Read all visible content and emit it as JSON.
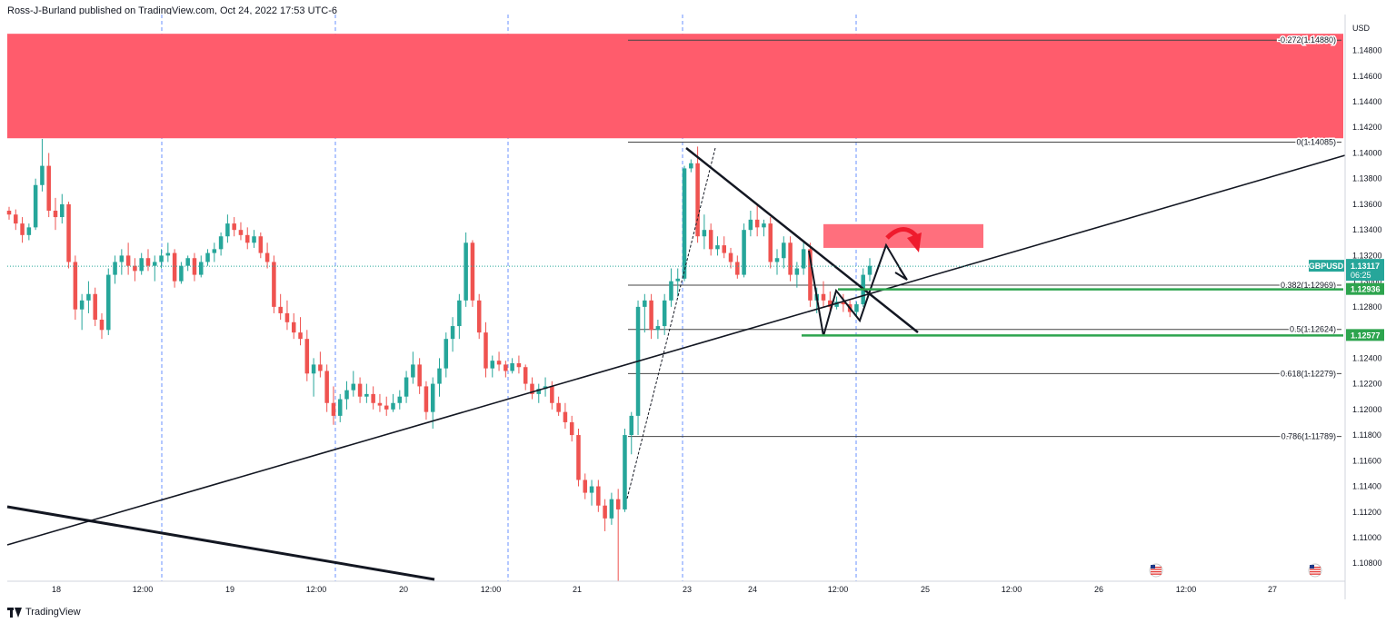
{
  "header": {
    "published_by": "Ross-J-Burland published on TradingView.com, Oct 24, 2022 17:53 UTC-6"
  },
  "footer": {
    "brand": "TradingView"
  },
  "chart_data": {
    "type": "candlestick",
    "symbol": "GBPUSD",
    "currency_label": "USD",
    "price_axis_ticks": [
      "1.14800",
      "1.14600",
      "1.14400",
      "1.14200",
      "1.14000",
      "1.13800",
      "1.13600",
      "1.13400",
      "1.13200",
      "1.13000",
      "1.12800",
      "1.12600",
      "1.12400",
      "1.12200",
      "1.12000",
      "1.11800",
      "1.11600",
      "1.11400",
      "1.11200",
      "1.11000",
      "1.10800"
    ],
    "time_axis_ticks": [
      "18",
      "12:00",
      "19",
      "12:00",
      "20",
      "12:00",
      "21",
      "23",
      "24",
      "12:00",
      "25",
      "12:00",
      "26",
      "12:00",
      "27"
    ],
    "ylim": [
      1.1066,
      1.1508
    ],
    "current_price": {
      "value": "1.13117",
      "countdown": "06:25",
      "label": "GBPUSD"
    },
    "horizontal_levels": [
      {
        "value": "1.12936",
        "color": "#2da44e"
      },
      {
        "value": "1.12577",
        "color": "#2da44e"
      }
    ],
    "fibonacci_levels": [
      {
        "label": "-0.272(1.14880)",
        "price": 1.1488
      },
      {
        "label": "0(1.14085)",
        "price": 1.14085
      },
      {
        "label": "0.382(1.12969)",
        "price": 1.12969
      },
      {
        "label": "0.5(1.12624)",
        "price": 1.12624
      },
      {
        "label": "0.618(1.12279)",
        "price": 1.12279
      },
      {
        "label": "0.786(1.11789)",
        "price": 1.11789
      }
    ],
    "zones": [
      {
        "name": "resistance-zone",
        "price_top": 1.1493,
        "price_bottom": 1.14115,
        "color": "#ff5c6c"
      },
      {
        "name": "target-zone",
        "price_top": 1.13445,
        "price_bottom": 1.1326,
        "color": "#ff6f7d"
      }
    ],
    "event_markers": [
      "us-flag-icon",
      "us-flag-icon"
    ],
    "colors": {
      "up": "#26a69a",
      "down": "#ef5350",
      "grid_day": "#2962ff",
      "level": "#2da44e",
      "axis_text": "#131722"
    },
    "candles": [
      [
        1.1355,
        1.1358,
        1.1348,
        1.1352
      ],
      [
        1.1352,
        1.1356,
        1.134,
        1.1345
      ],
      [
        1.1345,
        1.135,
        1.133,
        1.1336
      ],
      [
        1.1336,
        1.1345,
        1.1332,
        1.1342
      ],
      [
        1.1342,
        1.138,
        1.134,
        1.1375
      ],
      [
        1.1375,
        1.1411,
        1.137,
        1.139
      ],
      [
        1.139,
        1.14,
        1.135,
        1.1355
      ],
      [
        1.1355,
        1.1365,
        1.134,
        1.135
      ],
      [
        1.135,
        1.1368,
        1.1345,
        1.136
      ],
      [
        1.136,
        1.1362,
        1.131,
        1.1315
      ],
      [
        1.1315,
        1.132,
        1.127,
        1.1278
      ],
      [
        1.1278,
        1.129,
        1.1262,
        1.1285
      ],
      [
        1.1285,
        1.13,
        1.1275,
        1.129
      ],
      [
        1.129,
        1.1295,
        1.1265,
        1.127
      ],
      [
        1.127,
        1.1275,
        1.1255,
        1.1262
      ],
      [
        1.1262,
        1.131,
        1.1258,
        1.1305
      ],
      [
        1.1305,
        1.132,
        1.1298,
        1.1315
      ],
      [
        1.1315,
        1.1325,
        1.1305,
        1.132
      ],
      [
        1.132,
        1.133,
        1.1305,
        1.1312
      ],
      [
        1.1312,
        1.1318,
        1.13,
        1.1308
      ],
      [
        1.1308,
        1.1322,
        1.1305,
        1.1318
      ],
      [
        1.1318,
        1.1325,
        1.1308,
        1.1312
      ],
      [
        1.1312,
        1.132,
        1.13,
        1.1315
      ],
      [
        1.1315,
        1.1325,
        1.131,
        1.132
      ],
      [
        1.132,
        1.133,
        1.1315,
        1.1322
      ],
      [
        1.1322,
        1.1325,
        1.1295,
        1.13
      ],
      [
        1.13,
        1.1315,
        1.1298,
        1.1312
      ],
      [
        1.1312,
        1.132,
        1.1308,
        1.1318
      ],
      [
        1.1318,
        1.1322,
        1.13,
        1.1305
      ],
      [
        1.1305,
        1.132,
        1.1303,
        1.1315
      ],
      [
        1.1315,
        1.1325,
        1.1312,
        1.1322
      ],
      [
        1.1322,
        1.133,
        1.1315,
        1.1325
      ],
      [
        1.1325,
        1.1338,
        1.132,
        1.1335
      ],
      [
        1.1335,
        1.1352,
        1.133,
        1.1345
      ],
      [
        1.1345,
        1.135,
        1.1335,
        1.134
      ],
      [
        1.134,
        1.1346,
        1.1332,
        1.1336
      ],
      [
        1.1336,
        1.1342,
        1.1325,
        1.133
      ],
      [
        1.133,
        1.134,
        1.1326,
        1.1335
      ],
      [
        1.1335,
        1.1338,
        1.1318,
        1.1322
      ],
      [
        1.1322,
        1.133,
        1.131,
        1.1315
      ],
      [
        1.1315,
        1.132,
        1.1275,
        1.128
      ],
      [
        1.128,
        1.129,
        1.127,
        1.1275
      ],
      [
        1.1275,
        1.1285,
        1.1262,
        1.1268
      ],
      [
        1.1268,
        1.1275,
        1.1255,
        1.126
      ],
      [
        1.126,
        1.1272,
        1.125,
        1.1255
      ],
      [
        1.1255,
        1.1262,
        1.1222,
        1.1228
      ],
      [
        1.1228,
        1.124,
        1.121,
        1.1235
      ],
      [
        1.1235,
        1.1245,
        1.1225,
        1.123
      ],
      [
        1.123,
        1.1235,
        1.1198,
        1.1205
      ],
      [
        1.1205,
        1.1218,
        1.1188,
        1.1195
      ],
      [
        1.1195,
        1.1212,
        1.119,
        1.1208
      ],
      [
        1.1208,
        1.1222,
        1.12,
        1.1215
      ],
      [
        1.1215,
        1.123,
        1.121,
        1.122
      ],
      [
        1.122,
        1.1225,
        1.1205,
        1.121
      ],
      [
        1.121,
        1.122,
        1.1205,
        1.1212
      ],
      [
        1.1212,
        1.1218,
        1.12,
        1.1205
      ],
      [
        1.1205,
        1.1212,
        1.1198,
        1.1203
      ],
      [
        1.1203,
        1.121,
        1.1195,
        1.12
      ],
      [
        1.12,
        1.1212,
        1.1198,
        1.1205
      ],
      [
        1.1205,
        1.1215,
        1.12,
        1.121
      ],
      [
        1.121,
        1.123,
        1.1205,
        1.1225
      ],
      [
        1.1225,
        1.1245,
        1.122,
        1.1235
      ],
      [
        1.1235,
        1.124,
        1.1212,
        1.1218
      ],
      [
        1.1218,
        1.1222,
        1.1192,
        1.1198
      ],
      [
        1.1198,
        1.1225,
        1.1185,
        1.122
      ],
      [
        1.122,
        1.124,
        1.121,
        1.1232
      ],
      [
        1.1232,
        1.126,
        1.1225,
        1.1255
      ],
      [
        1.1255,
        1.1272,
        1.1245,
        1.1265
      ],
      [
        1.1265,
        1.129,
        1.1255,
        1.1285
      ],
      [
        1.1285,
        1.1338,
        1.128,
        1.133
      ],
      [
        1.133,
        1.1332,
        1.128,
        1.1285
      ],
      [
        1.1285,
        1.129,
        1.1255,
        1.126
      ],
      [
        1.126,
        1.1268,
        1.1225,
        1.1232
      ],
      [
        1.1232,
        1.1242,
        1.1225,
        1.1238
      ],
      [
        1.1238,
        1.1245,
        1.123,
        1.1235
      ],
      [
        1.1235,
        1.1238,
        1.1225,
        1.123
      ],
      [
        1.123,
        1.124,
        1.1228,
        1.1236
      ],
      [
        1.1236,
        1.1242,
        1.1228,
        1.1233
      ],
      [
        1.1233,
        1.1235,
        1.1215,
        1.122
      ],
      [
        1.122,
        1.1225,
        1.1208,
        1.1212
      ],
      [
        1.1212,
        1.122,
        1.1205,
        1.1216
      ],
      [
        1.1216,
        1.1225,
        1.121,
        1.1218
      ],
      [
        1.1218,
        1.1222,
        1.12,
        1.1205
      ],
      [
        1.1205,
        1.121,
        1.1195,
        1.1198
      ],
      [
        1.1198,
        1.1205,
        1.1185,
        1.119
      ],
      [
        1.119,
        1.1195,
        1.1175,
        1.118
      ],
      [
        1.118,
        1.1185,
        1.114,
        1.1145
      ],
      [
        1.1145,
        1.115,
        1.113,
        1.1135
      ],
      [
        1.1135,
        1.1145,
        1.1125,
        1.114
      ],
      [
        1.114,
        1.1145,
        1.112,
        1.1125
      ],
      [
        1.1125,
        1.113,
        1.1105,
        1.1115
      ],
      [
        1.1115,
        1.1135,
        1.111,
        1.113
      ],
      [
        1.113,
        1.1138,
        1.1066,
        1.1122
      ],
      [
        1.1122,
        1.1185,
        1.112,
        1.118
      ],
      [
        1.118,
        1.1198,
        1.1165,
        1.1195
      ],
      [
        1.1195,
        1.1285,
        1.118,
        1.128
      ],
      [
        1.128,
        1.129,
        1.126,
        1.1285
      ],
      [
        1.1285,
        1.129,
        1.1255,
        1.1262
      ],
      [
        1.1262,
        1.127,
        1.1255,
        1.1265
      ],
      [
        1.1265,
        1.129,
        1.1258,
        1.1285
      ],
      [
        1.1285,
        1.131,
        1.128,
        1.13
      ],
      [
        1.13,
        1.131,
        1.1288,
        1.1302
      ],
      [
        1.1302,
        1.139,
        1.13,
        1.1388
      ],
      [
        1.1388,
        1.1395,
        1.1385,
        1.1392
      ],
      [
        1.1392,
        1.1405,
        1.133,
        1.1335
      ],
      [
        1.1335,
        1.1352,
        1.1325,
        1.134
      ],
      [
        1.134,
        1.1345,
        1.132,
        1.1325
      ],
      [
        1.1325,
        1.1335,
        1.132,
        1.1328
      ],
      [
        1.1328,
        1.1335,
        1.1318,
        1.1322
      ],
      [
        1.1322,
        1.1326,
        1.131,
        1.1315
      ],
      [
        1.1315,
        1.132,
        1.1302,
        1.1305
      ],
      [
        1.1305,
        1.1345,
        1.1303,
        1.134
      ],
      [
        1.134,
        1.1355,
        1.1335,
        1.1348
      ],
      [
        1.1348,
        1.136,
        1.1335,
        1.1342
      ],
      [
        1.1342,
        1.1348,
        1.1335,
        1.1345
      ],
      [
        1.1345,
        1.135,
        1.131,
        1.1315
      ],
      [
        1.1315,
        1.1325,
        1.1305,
        1.1318
      ],
      [
        1.1318,
        1.1335,
        1.131,
        1.133
      ],
      [
        1.133,
        1.1335,
        1.13,
        1.1305
      ],
      [
        1.1305,
        1.1315,
        1.1295,
        1.131
      ],
      [
        1.131,
        1.133,
        1.1305,
        1.1325
      ],
      [
        1.1325,
        1.133,
        1.128,
        1.1285
      ],
      [
        1.1285,
        1.1295,
        1.1275,
        1.129
      ],
      [
        1.129,
        1.13,
        1.128,
        1.1285
      ],
      [
        1.1285,
        1.1292,
        1.1276,
        1.128
      ],
      [
        1.128,
        1.1288,
        1.1278,
        1.1284
      ],
      [
        1.1284,
        1.129,
        1.1276,
        1.1282
      ],
      [
        1.1282,
        1.1285,
        1.1272,
        1.1276
      ],
      [
        1.1276,
        1.1284,
        1.1272,
        1.1282
      ],
      [
        1.1282,
        1.131,
        1.128,
        1.1305
      ],
      [
        1.1305,
        1.1318,
        1.13,
        1.1312
      ]
    ]
  }
}
